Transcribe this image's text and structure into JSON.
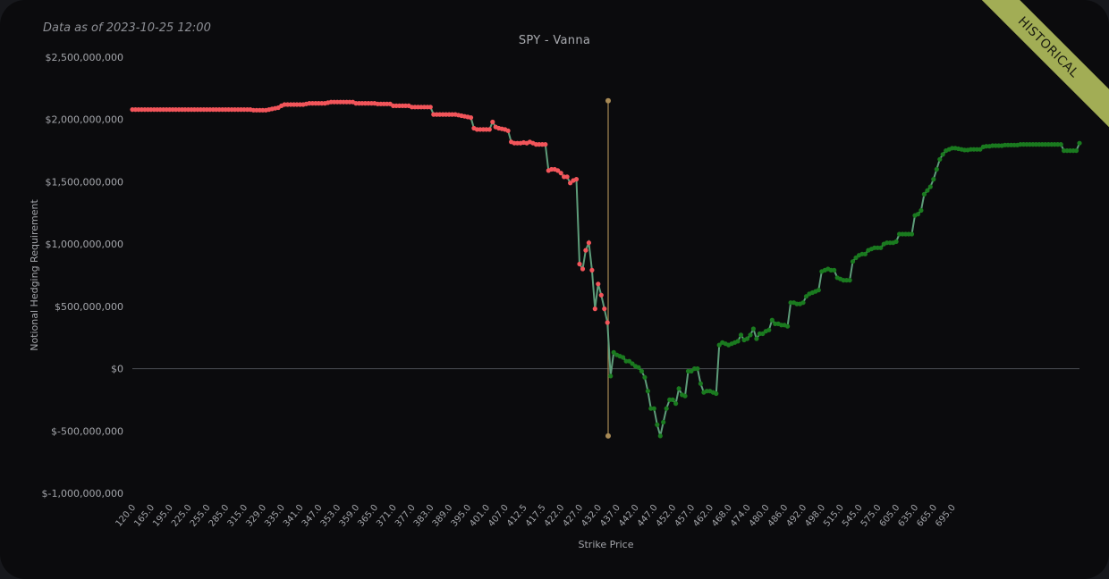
{
  "header": {
    "data_as_of": "Data as of 2023-10-25 12:00",
    "ribbon": "HISTORICAL"
  },
  "chart_data": {
    "type": "line",
    "title": "SPY - Vanna",
    "xlabel": "Strike Price",
    "ylabel": "Notional Hedging Requirement",
    "ylim": [
      -1000000000,
      2500000000
    ],
    "y_ticks": [
      -1000000000,
      -500000000,
      0,
      500000000,
      1000000000,
      1500000000,
      2000000000,
      2500000000
    ],
    "y_tick_labels": [
      "$-1,000,000,000",
      "$-500,000,000",
      "$0",
      "$500,000,000",
      "$1,000,000,000",
      "$1,500,000,000",
      "$2,000,000,000",
      "$2,500,000,000"
    ],
    "x_tick_labels": [
      "120.0",
      "165.0",
      "195.0",
      "225.0",
      "255.0",
      "285.0",
      "315.0",
      "329.0",
      "335.0",
      "341.0",
      "347.0",
      "353.0",
      "359.0",
      "365.0",
      "371.0",
      "377.0",
      "383.0",
      "389.0",
      "395.0",
      "401.0",
      "407.0",
      "412.5",
      "417.5",
      "422.0",
      "427.0",
      "432.0",
      "437.0",
      "442.0",
      "447.0",
      "452.0",
      "457.0",
      "462.0",
      "468.0",
      "474.0",
      "480.0",
      "486.0",
      "492.0",
      "498.0",
      "515.0",
      "545.0",
      "575.0",
      "605.0",
      "635.0",
      "665.0",
      "695.0"
    ],
    "x_label_steps": 6,
    "spot_marker": {
      "strike": "420.0",
      "top": 2150000000,
      "bottom": -540000000
    },
    "colors": {
      "negative": "#f2555a",
      "positive": "#1a7a1f",
      "line": "#5e9d7a",
      "spot": "#a88a55",
      "zero": "#4a4c52"
    },
    "values": [
      2080000000,
      2080000000,
      2080000000,
      2080000000,
      2080000000,
      2080000000,
      2080000000,
      2080000000,
      2080000000,
      2080000000,
      2080000000,
      2080000000,
      2080000000,
      2080000000,
      2080000000,
      2080000000,
      2080000000,
      2080000000,
      2080000000,
      2080000000,
      2080000000,
      2080000000,
      2080000000,
      2080000000,
      2080000000,
      2080000000,
      2080000000,
      2080000000,
      2080000000,
      2080000000,
      2080000000,
      2080000000,
      2080000000,
      2080000000,
      2080000000,
      2080000000,
      2080000000,
      2080000000,
      2080000000,
      2075000000,
      2075000000,
      2075000000,
      2075000000,
      2075000000,
      2080000000,
      2085000000,
      2090000000,
      2095000000,
      2110000000,
      2120000000,
      2120000000,
      2120000000,
      2120000000,
      2120000000,
      2120000000,
      2120000000,
      2125000000,
      2130000000,
      2130000000,
      2130000000,
      2130000000,
      2130000000,
      2130000000,
      2135000000,
      2140000000,
      2140000000,
      2140000000,
      2140000000,
      2140000000,
      2140000000,
      2140000000,
      2140000000,
      2130000000,
      2130000000,
      2130000000,
      2130000000,
      2130000000,
      2130000000,
      2130000000,
      2125000000,
      2125000000,
      2125000000,
      2125000000,
      2125000000,
      2110000000,
      2110000000,
      2110000000,
      2110000000,
      2110000000,
      2110000000,
      2100000000,
      2100000000,
      2100000000,
      2100000000,
      2100000000,
      2100000000,
      2100000000,
      2040000000,
      2040000000,
      2040000000,
      2040000000,
      2040000000,
      2040000000,
      2040000000,
      2040000000,
      2035000000,
      2030000000,
      2025000000,
      2020000000,
      2015000000,
      1930000000,
      1920000000,
      1920000000,
      1920000000,
      1920000000,
      1920000000,
      1980000000,
      1940000000,
      1930000000,
      1925000000,
      1920000000,
      1910000000,
      1820000000,
      1810000000,
      1810000000,
      1810000000,
      1815000000,
      1810000000,
      1820000000,
      1810000000,
      1800000000,
      1800000000,
      1800000000,
      1800000000,
      1590000000,
      1600000000,
      1600000000,
      1590000000,
      1570000000,
      1540000000,
      1540000000,
      1490000000,
      1510000000,
      1520000000,
      840000000,
      800000000,
      950000000,
      1010000000,
      790000000,
      480000000,
      680000000,
      590000000,
      480000000,
      370000000,
      -60000000,
      130000000,
      110000000,
      100000000,
      90000000,
      60000000,
      60000000,
      40000000,
      20000000,
      10000000,
      -20000000,
      -70000000,
      -180000000,
      -320000000,
      -320000000,
      -450000000,
      -540000000,
      -430000000,
      -320000000,
      -250000000,
      -250000000,
      -280000000,
      -160000000,
      -210000000,
      -220000000,
      -20000000,
      -20000000,
      0,
      0,
      -120000000,
      -190000000,
      -180000000,
      -180000000,
      -190000000,
      -200000000,
      190000000,
      210000000,
      200000000,
      190000000,
      200000000,
      210000000,
      220000000,
      270000000,
      230000000,
      240000000,
      270000000,
      320000000,
      240000000,
      280000000,
      280000000,
      300000000,
      310000000,
      390000000,
      360000000,
      360000000,
      350000000,
      350000000,
      340000000,
      530000000,
      530000000,
      520000000,
      520000000,
      530000000,
      580000000,
      600000000,
      610000000,
      620000000,
      630000000,
      780000000,
      790000000,
      800000000,
      790000000,
      790000000,
      730000000,
      720000000,
      710000000,
      710000000,
      710000000,
      860000000,
      890000000,
      910000000,
      920000000,
      920000000,
      950000000,
      960000000,
      970000000,
      970000000,
      970000000,
      1000000000,
      1010000000,
      1010000000,
      1010000000,
      1020000000,
      1080000000,
      1080000000,
      1080000000,
      1080000000,
      1080000000,
      1230000000,
      1240000000,
      1270000000,
      1400000000,
      1430000000,
      1460000000,
      1520000000,
      1600000000,
      1680000000,
      1720000000,
      1750000000,
      1760000000,
      1770000000,
      1770000000,
      1765000000,
      1760000000,
      1755000000,
      1755000000,
      1760000000,
      1760000000,
      1760000000,
      1760000000,
      1780000000,
      1785000000,
      1785000000,
      1790000000,
      1790000000,
      1790000000,
      1790000000,
      1795000000,
      1795000000,
      1795000000,
      1795000000,
      1795000000,
      1800000000,
      1800000000,
      1800000000,
      1800000000,
      1800000000,
      1800000000,
      1800000000,
      1800000000,
      1800000000,
      1800000000,
      1800000000,
      1800000000,
      1800000000,
      1800000000,
      1750000000,
      1750000000,
      1750000000,
      1750000000,
      1750000000,
      1810000000
    ]
  }
}
